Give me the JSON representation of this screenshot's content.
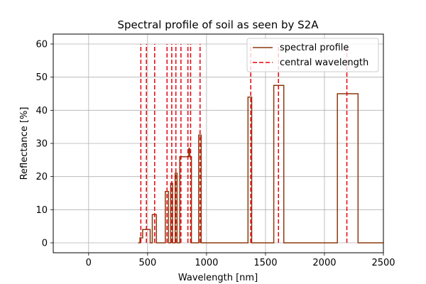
{
  "chart_data": {
    "type": "line",
    "title": "Spectral profile of soil as seen by S2A",
    "xlabel": "Wavelength [nm]",
    "ylabel": "Reflectance [%]",
    "xlim": [
      -300,
      2500
    ],
    "ylim": [
      -3,
      63
    ],
    "xticks": [
      0,
      500,
      1000,
      1500,
      2000,
      2500
    ],
    "yticks": [
      0,
      10,
      20,
      30,
      40,
      50,
      60
    ],
    "grid": true,
    "legend_placement": "top-right",
    "series": [
      {
        "name": "spectral profile",
        "color": "#8b3a0f",
        "style": "solid",
        "x": [
          420,
          435,
          435,
          458,
          458,
          522,
          522,
          540,
          540,
          575,
          575,
          650,
          650,
          677,
          677,
          696,
          696,
          712,
          712,
          734,
          734,
          750,
          750,
          773,
          773,
          782,
          782,
          850,
          850,
          857,
          857,
          872,
          872,
          933,
          933,
          955,
          955,
          1352,
          1352,
          1383,
          1383,
          1570,
          1570,
          1655,
          1655,
          2110,
          2110,
          2285,
          2285,
          2500
        ],
        "y": [
          0,
          0,
          1.5,
          1.5,
          4,
          4,
          0,
          0,
          8.5,
          8.5,
          0,
          0,
          15.5,
          15.5,
          0,
          0,
          18,
          18,
          0,
          0,
          21,
          21,
          0,
          0,
          26,
          26,
          26,
          26,
          28.5,
          28.5,
          26,
          26,
          0,
          0,
          32.5,
          32.5,
          0,
          0,
          44,
          44,
          0,
          0,
          47.5,
          47.5,
          0,
          0,
          45,
          45,
          0,
          0
        ]
      },
      {
        "name": "central wavelength",
        "color": "#e8000b",
        "style": "dashed",
        "x": [
          443,
          490,
          560,
          665,
          705,
          740,
          783,
          842,
          865,
          945,
          1375,
          1610,
          2190
        ]
      }
    ]
  }
}
